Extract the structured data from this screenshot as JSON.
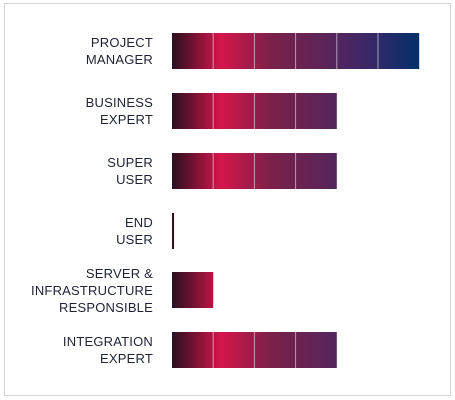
{
  "chart_data": {
    "type": "bar",
    "orientation": "horizontal",
    "categories": [
      [
        "PROJECT",
        "MANAGER"
      ],
      [
        "BUSINESS",
        "EXPERT"
      ],
      [
        "SUPER",
        "USER"
      ],
      [
        "END",
        "USER"
      ],
      [
        "SERVER &",
        "INFRASTRUCTURE",
        "RESPONSIBLE"
      ],
      [
        "INTEGRATION",
        "EXPERT"
      ]
    ],
    "values": [
      6,
      4,
      4,
      0.05,
      1,
      4
    ],
    "xlim": [
      0,
      6
    ],
    "segment_colors": [
      "#2a1020",
      "#d6154b",
      "#7a2149",
      "#5e2458",
      "#3a2868",
      "#00306a"
    ],
    "grid": false,
    "legend": "none"
  }
}
